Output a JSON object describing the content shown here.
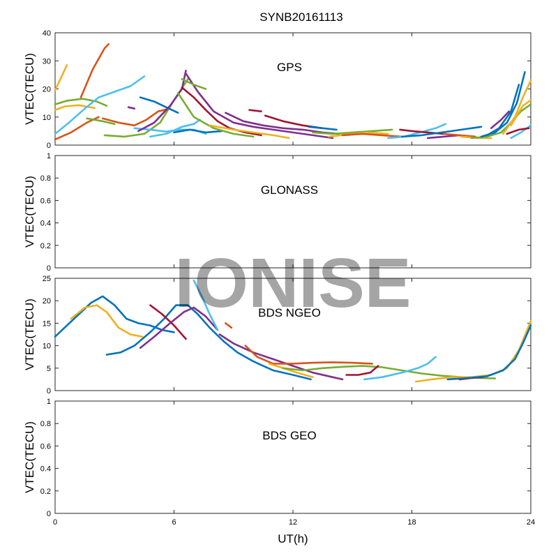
{
  "figure": {
    "title": "SYNB20161113",
    "xlabel": "UT(h)",
    "watermark": "IONISE"
  },
  "chart_data": [
    {
      "type": "line",
      "panel_label": "GPS",
      "ylabel": "VTEC(TECU)",
      "xlim": [
        0,
        24
      ],
      "ylim": [
        0,
        40
      ],
      "xticks": [
        0,
        6,
        12,
        18,
        24
      ],
      "yticks": [
        0,
        10,
        20,
        30,
        40
      ],
      "show_xticklabels": false,
      "series": [
        {
          "color": "#EDB120",
          "x": [
            0,
            0.3,
            0.6
          ],
          "y": [
            19.5,
            24,
            28.5
          ]
        },
        {
          "color": "#EDB120",
          "x": [
            0,
            0.5,
            1.2,
            2.0
          ],
          "y": [
            12.5,
            13.8,
            14.2,
            13.2
          ]
        },
        {
          "color": "#D95319",
          "x": [
            0,
            0.8,
            1.6,
            2.2
          ],
          "y": [
            2,
            4.5,
            8,
            10
          ]
        },
        {
          "color": "#D95319",
          "x": [
            1.3,
            1.9,
            2.5,
            2.7
          ],
          "y": [
            17,
            27,
            34.5,
            36
          ]
        },
        {
          "color": "#77AC30",
          "x": [
            0,
            0.6,
            1.4,
            2.1,
            2.6
          ],
          "y": [
            14.5,
            15.8,
            16.5,
            15.5,
            14
          ]
        },
        {
          "color": "#4DBEEE",
          "x": [
            0,
            0.7,
            1.5,
            2.2,
            3.0,
            3.8,
            4.5
          ],
          "y": [
            4,
            8,
            13,
            17,
            19,
            21,
            24.5
          ]
        },
        {
          "color": "#77AC30",
          "x": [
            1.6,
            2.4,
            3.0
          ],
          "y": [
            9.5,
            8.5,
            7.5
          ]
        },
        {
          "color": "#D95319",
          "x": [
            2.4,
            3.2,
            4.0,
            4.6,
            5.2,
            5.8
          ],
          "y": [
            9.5,
            8,
            7,
            9,
            12,
            13
          ]
        },
        {
          "color": "#77AC30",
          "x": [
            2.5,
            3.5,
            4.5,
            5.3,
            6.0,
            6.7
          ],
          "y": [
            3.5,
            3,
            4,
            8,
            16,
            23.5
          ]
        },
        {
          "color": "#7E2F8E",
          "x": [
            3.7,
            4.0
          ],
          "y": [
            13.5,
            13
          ]
        },
        {
          "color": "#0072BD",
          "x": [
            4.3,
            5.0,
            5.6,
            6.2
          ],
          "y": [
            17,
            15.5,
            13.5,
            11.5
          ]
        },
        {
          "color": "#4DBEEE",
          "x": [
            4.0,
            4.8,
            5.6,
            6.3,
            7.0,
            7.6
          ],
          "y": [
            6,
            5.5,
            4.8,
            5.5,
            5.5,
            4
          ]
        },
        {
          "color": "#4DBEEE",
          "x": [
            4.8,
            5.6,
            6.4,
            7.0,
            7.3
          ],
          "y": [
            3,
            4,
            6.5,
            7.5,
            9
          ]
        },
        {
          "color": "#0072BD",
          "x": [
            6.0,
            6.8,
            7.6,
            8.4
          ],
          "y": [
            4.5,
            5.5,
            4.5,
            5
          ]
        },
        {
          "color": "#7E2F8E",
          "x": [
            4.2,
            5.0,
            5.8,
            6.4,
            6.6
          ],
          "y": [
            5,
            8,
            14,
            20,
            26.5
          ]
        },
        {
          "color": "#7E2F8E",
          "x": [
            6.6,
            7.2,
            8.0,
            9.0,
            10.0,
            11.0,
            12.0,
            13.0,
            14.0
          ],
          "y": [
            25.5,
            19,
            12,
            8,
            6.5,
            5.5,
            4.5,
            3.5,
            2.5
          ]
        },
        {
          "color": "#A2142F",
          "x": [
            6.4,
            7.0,
            7.6,
            8.2,
            8.8,
            9.6,
            10.4
          ],
          "y": [
            20.5,
            17,
            12.5,
            8.5,
            6,
            4.5,
            3.5
          ]
        },
        {
          "color": "#77AC30",
          "x": [
            6.4,
            7.0,
            7.6
          ],
          "y": [
            23.5,
            21.5,
            20
          ]
        },
        {
          "color": "#77AC30",
          "x": [
            6.2,
            7.0,
            8.0,
            9.0,
            10.0
          ],
          "y": [
            18.5,
            10,
            6,
            4,
            3
          ]
        },
        {
          "color": "#EDB120",
          "x": [
            7.8,
            9.0,
            10.0,
            11.0,
            11.8
          ],
          "y": [
            7,
            5.5,
            4.5,
            3.5,
            2.5
          ]
        },
        {
          "color": "#7E2F8E",
          "x": [
            8.6,
            9.5,
            10.5,
            11.5,
            12.5,
            13.5,
            14.3
          ],
          "y": [
            11.5,
            8.5,
            7,
            6,
            5.5,
            4.5,
            4
          ]
        },
        {
          "color": "#A2142F",
          "x": [
            9.8,
            10.4
          ],
          "y": [
            12.5,
            12
          ]
        },
        {
          "color": "#A2142F",
          "x": [
            10.6,
            11.5,
            12.5,
            13.5
          ],
          "y": [
            10.5,
            8.5,
            7,
            6
          ]
        },
        {
          "color": "#0072BD",
          "x": [
            12.8,
            13.5,
            14.2
          ],
          "y": [
            6.5,
            6,
            5.5
          ]
        },
        {
          "color": "#77AC30",
          "x": [
            13.0,
            14.0,
            15.0,
            16.0,
            17.0
          ],
          "y": [
            4.5,
            4,
            4.5,
            5,
            5.5
          ]
        },
        {
          "color": "#EDB120",
          "x": [
            13.8,
            14.8,
            15.8,
            16.8
          ],
          "y": [
            3,
            3.8,
            4.5,
            4
          ]
        },
        {
          "color": "#D95319",
          "x": [
            14.5,
            15.5,
            16.5,
            17.5
          ],
          "y": [
            3.5,
            4,
            3.5,
            3
          ]
        },
        {
          "color": "#4DBEEE",
          "x": [
            16.8,
            17.6,
            18.4,
            19.2,
            19.7
          ],
          "y": [
            2.5,
            3,
            4.5,
            6,
            7.5
          ]
        },
        {
          "color": "#A2142F",
          "x": [
            17.4,
            18.0,
            18.8,
            19.6
          ],
          "y": [
            5.5,
            5,
            4.5,
            4
          ]
        },
        {
          "color": "#0072BD",
          "x": [
            17.5,
            18.5,
            19.5,
            20.5,
            21.5
          ],
          "y": [
            3,
            3.5,
            4.5,
            5.5,
            6.5
          ]
        },
        {
          "color": "#7E2F8E",
          "x": [
            18.8,
            19.6,
            20.4,
            21.2
          ],
          "y": [
            2.5,
            3,
            3.5,
            3
          ]
        },
        {
          "color": "#D95319",
          "x": [
            19.6,
            20.4,
            21.2
          ],
          "y": [
            4,
            3.5,
            3
          ]
        },
        {
          "color": "#EDB120",
          "x": [
            20.5,
            21.3,
            22.0
          ],
          "y": [
            3,
            2.5,
            2.5
          ]
        },
        {
          "color": "#77AC30",
          "x": [
            21.0,
            21.8,
            22.5,
            23.0,
            23.5,
            24.0
          ],
          "y": [
            2.5,
            3,
            4.5,
            8,
            12,
            14.5
          ]
        },
        {
          "color": "#0072BD",
          "x": [
            21.5,
            22.2,
            22.8,
            23.3,
            23.7
          ],
          "y": [
            3,
            4.5,
            8,
            15,
            26
          ]
        },
        {
          "color": "#0072BD",
          "x": [
            21.8,
            22.4,
            23.0,
            23.4
          ],
          "y": [
            3.5,
            6,
            12,
            21.5
          ]
        },
        {
          "color": "#7E2F8E",
          "x": [
            22.0,
            22.5,
            22.9
          ],
          "y": [
            6,
            9,
            12
          ]
        },
        {
          "color": "#EDB120",
          "x": [
            22.6,
            23.2,
            23.6,
            24.0
          ],
          "y": [
            4,
            10,
            17,
            23
          ]
        },
        {
          "color": "#EDB120",
          "x": [
            23.0,
            23.6,
            24.0
          ],
          "y": [
            7,
            14,
            16
          ]
        },
        {
          "color": "#4DBEEE",
          "x": [
            23.0,
            23.5,
            24.0
          ],
          "y": [
            2.5,
            4.5,
            7
          ]
        },
        {
          "color": "#A2142F",
          "x": [
            22.8,
            23.4,
            23.9
          ],
          "y": [
            4,
            5.5,
            6
          ]
        }
      ]
    },
    {
      "type": "line",
      "panel_label": "GLONASS",
      "ylabel": "VTEC(TECU)",
      "xlim": [
        0,
        24
      ],
      "ylim": [
        0,
        1
      ],
      "xticks": [
        0,
        6,
        12,
        18,
        24
      ],
      "yticks": [
        0,
        0.2,
        0.4,
        0.6,
        0.8,
        1
      ],
      "show_xticklabels": false,
      "series": []
    },
    {
      "type": "line",
      "panel_label": "BDS NGEO",
      "ylabel": "VTEC(TECU)",
      "xlim": [
        0,
        24
      ],
      "ylim": [
        0,
        25
      ],
      "xticks": [
        0,
        6,
        12,
        18,
        24
      ],
      "yticks": [
        0,
        5,
        10,
        15,
        20,
        25
      ],
      "show_xticklabels": false,
      "series": [
        {
          "color": "#0072BD",
          "x": [
            0,
            0.6,
            1.2,
            1.8,
            2.4,
            3.0,
            3.6,
            4.2,
            4.8,
            5.4,
            6.0
          ],
          "y": [
            12,
            14.5,
            17,
            19.5,
            21,
            19,
            16,
            15,
            14.5,
            13.5,
            13
          ]
        },
        {
          "color": "#EDB120",
          "x": [
            0.8,
            1.5,
            2.1,
            2.6,
            3.2,
            3.8,
            4.4
          ],
          "y": [
            16,
            18.5,
            19,
            17.5,
            14,
            12.5,
            12
          ]
        },
        {
          "color": "#0072BD",
          "x": [
            2.6,
            3.3,
            4.0,
            4.8,
            5.5,
            6.1,
            6.7,
            7.2,
            7.8,
            8.5,
            9.2,
            10.0,
            11.0,
            12.0,
            12.9
          ],
          "y": [
            8,
            8.5,
            10,
            13,
            16,
            19,
            19,
            17,
            14,
            11,
            8.5,
            6.5,
            4.5,
            3.5,
            2.5
          ]
        },
        {
          "color": "#A2142F",
          "x": [
            4.8,
            5.4,
            6.0,
            6.6
          ],
          "y": [
            19,
            17,
            14.5,
            11.5
          ]
        },
        {
          "color": "#7E2F8E",
          "x": [
            4.3,
            5.0,
            5.8,
            6.5,
            7.0,
            7.6,
            8.2
          ],
          "y": [
            9.5,
            12,
            15,
            17.5,
            18.5,
            16.5,
            13.5
          ]
        },
        {
          "color": "#4DBEEE",
          "x": [
            7.0,
            7.4,
            7.8,
            8.2
          ],
          "y": [
            24.5,
            21,
            17,
            13.5
          ]
        },
        {
          "color": "#D95319",
          "x": [
            8.6,
            8.9
          ],
          "y": [
            15,
            14
          ]
        },
        {
          "color": "#7E2F8E",
          "x": [
            8.3,
            9.0,
            10.0,
            11.0,
            12.0,
            13.0,
            14.0,
            14.5
          ],
          "y": [
            12.5,
            10.5,
            8.5,
            7,
            5.5,
            4,
            3,
            2.5
          ]
        },
        {
          "color": "#D95319",
          "x": [
            9.6,
            10.2,
            11.0,
            12.0,
            13.0,
            14.0,
            15.0,
            16.0
          ],
          "y": [
            10,
            7.5,
            6,
            6,
            6.2,
            6.3,
            6.2,
            6
          ]
        },
        {
          "color": "#EDB120",
          "x": [
            10.8,
            11.5,
            12.2,
            13.0
          ],
          "y": [
            6,
            5,
            4,
            3
          ]
        },
        {
          "color": "#77AC30",
          "x": [
            11.5,
            12.5,
            13.5,
            14.5,
            15.5,
            16.5,
            17.5,
            18.5,
            19.5,
            20.5,
            21.5,
            22.2
          ],
          "y": [
            5,
            4.5,
            5,
            5.3,
            5.5,
            5.2,
            4.5,
            3.8,
            3.3,
            3,
            2.8,
            2.7
          ]
        },
        {
          "color": "#A2142F",
          "x": [
            14.7,
            15.3,
            15.9,
            16.3
          ],
          "y": [
            3.5,
            3.5,
            4,
            5.5
          ]
        },
        {
          "color": "#4DBEEE",
          "x": [
            15.6,
            16.5,
            17.5,
            18.3,
            18.8,
            19.2
          ],
          "y": [
            2.5,
            3,
            4,
            5,
            6,
            7.5
          ]
        },
        {
          "color": "#EDB120",
          "x": [
            18.2,
            19.0,
            20.0,
            21.0,
            22.0,
            22.8,
            23.4,
            24.0
          ],
          "y": [
            2,
            2.5,
            3,
            3,
            3.5,
            5,
            9,
            15.5
          ]
        },
        {
          "color": "#A2142F",
          "x": [
            20.4,
            21.0,
            21.6
          ],
          "y": [
            2.5,
            2.8,
            3
          ]
        },
        {
          "color": "#0072BD",
          "x": [
            19.8,
            20.8,
            21.8,
            22.6,
            23.2,
            23.6,
            24.0
          ],
          "y": [
            2.5,
            2.8,
            3.2,
            4.5,
            7,
            10.5,
            14.5
          ]
        }
      ]
    },
    {
      "type": "line",
      "panel_label": "BDS GEO",
      "ylabel": "VTEC(TECU)",
      "xlim": [
        0,
        24
      ],
      "ylim": [
        0,
        1
      ],
      "xticks": [
        0,
        6,
        12,
        18,
        24
      ],
      "yticks": [
        0,
        0.2,
        0.4,
        0.6,
        0.8,
        1
      ],
      "show_xticklabels": true,
      "series": []
    }
  ]
}
